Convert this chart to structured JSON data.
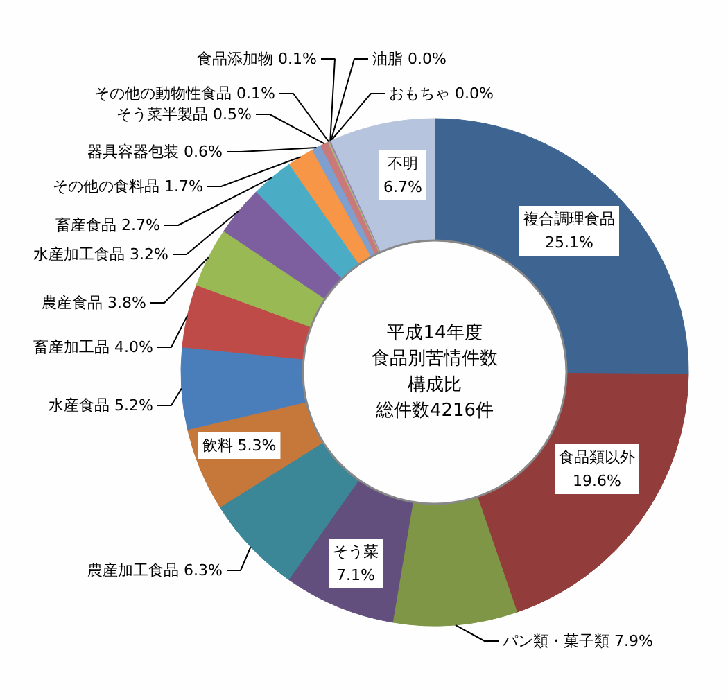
{
  "chart_data": {
    "type": "donut",
    "title": "平成14年度",
    "subtitle": "食品別苦情件数構成比",
    "annotations": [
      "総件数4216件"
    ],
    "categories": [
      "複合調理食品",
      "食品類以外",
      "パン類・菓子類",
      "そう菜",
      "農産加工食品",
      "飲料",
      "水産食品",
      "畜産加工品",
      "農産食品",
      "水産加工食品",
      "畜産食品",
      "その他の食料品",
      "器具容器包装",
      "そう菜半製品",
      "その他の動物性食品",
      "食品添加物",
      "油脂",
      "おもちゃ",
      "不明"
    ],
    "values": [
      25.1,
      19.6,
      7.9,
      7.1,
      6.3,
      5.3,
      5.2,
      4.0,
      3.8,
      3.2,
      2.7,
      1.7,
      0.6,
      0.5,
      0.1,
      0.1,
      0.0,
      0.0,
      6.7
    ],
    "colors": [
      "#3e6591",
      "#923c3b",
      "#7e9646",
      "#634f7e",
      "#3b8697",
      "#c6773a",
      "#4a7ebb",
      "#be4b48",
      "#98b954",
      "#7d5fa0",
      "#4bacc6",
      "#f79646",
      "#7f9fcf",
      "#c9797a",
      "#a8b87a",
      "#9983b5",
      "#5fb4c8",
      "#f9b079",
      "#b7c4de"
    ],
    "value_labels": [
      "25.1%",
      "19.6%",
      "7.9%",
      "7.1%",
      "6.3%",
      "5.3%",
      "5.2%",
      "4.0%",
      "3.8%",
      "3.2%",
      "2.7%",
      "1.7%",
      "0.6%",
      "0.5%",
      "0.1%",
      "0.1%",
      "0.0%",
      "0.0%",
      "6.7%"
    ]
  }
}
